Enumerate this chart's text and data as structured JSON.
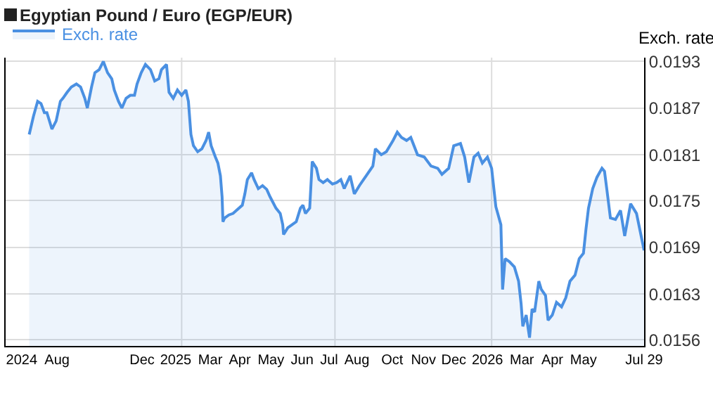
{
  "chart_data": {
    "type": "area",
    "title": "Egyptian Pound / Euro (EGP/EUR)",
    "ylabel": "Exch. rate",
    "legend": "top left",
    "grid": true,
    "marker": "none",
    "line_style": "solid",
    "x": [
      "2024-07-29",
      "2024-08-03",
      "2024-08-08",
      "2024-08-12",
      "2024-08-16",
      "2024-08-19",
      "2024-08-22",
      "2024-08-25",
      "2024-08-30",
      "2024-09-04",
      "2024-09-07",
      "2024-09-12",
      "2024-09-17",
      "2024-09-23",
      "2024-09-28",
      "2024-10-03",
      "2024-10-06",
      "2024-10-11",
      "2024-10-15",
      "2024-10-20",
      "2024-10-25",
      "2024-10-30",
      "2024-11-04",
      "2024-11-07",
      "2024-11-12",
      "2024-11-16",
      "2024-11-21",
      "2024-11-26",
      "2024-12-01",
      "2024-12-04",
      "2024-12-09",
      "2024-12-14",
      "2024-12-20",
      "2024-12-25",
      "2024-12-30",
      "2025-01-02",
      "2025-01-08",
      "2025-01-11",
      "2025-01-16",
      "2025-01-21",
      "2025-01-26",
      "2025-01-31",
      "2025-02-03",
      "2025-02-06",
      "2025-02-09",
      "2025-02-14",
      "2025-02-19",
      "2025-02-24",
      "2025-02-27",
      "2025-03-02",
      "2025-03-07",
      "2025-03-10",
      "2025-03-13",
      "2025-03-15",
      "2025-03-16",
      "2025-03-18",
      "2025-03-23",
      "2025-03-28",
      "2025-04-01",
      "2025-04-08",
      "2025-04-11",
      "2025-04-14",
      "2025-04-19",
      "2025-04-22",
      "2025-04-27",
      "2025-05-02",
      "2025-05-07",
      "2025-05-11",
      "2025-05-18",
      "2025-05-23",
      "2025-05-26",
      "2025-05-27",
      "2025-06-01",
      "2025-06-06",
      "2025-06-11",
      "2025-06-16",
      "2025-06-19",
      "2025-06-22",
      "2025-06-27",
      "2025-06-30",
      "2025-07-05",
      "2025-07-08",
      "2025-07-13",
      "2025-07-18",
      "2025-07-24",
      "2025-07-29",
      "2025-08-03",
      "2025-08-07",
      "2025-08-14",
      "2025-08-19",
      "2025-08-25",
      "2025-09-02",
      "2025-09-10",
      "2025-09-13",
      "2025-09-20",
      "2025-09-26",
      "2025-10-04",
      "2025-10-09",
      "2025-10-14",
      "2025-10-20",
      "2025-10-25",
      "2025-11-02",
      "2025-11-10",
      "2025-11-18",
      "2025-11-26",
      "2025-12-01",
      "2025-12-09",
      "2025-12-15",
      "2025-12-23",
      "2025-12-28",
      "2026-01-02",
      "2026-01-08",
      "2026-01-13",
      "2026-01-18",
      "2026-01-24",
      "2026-01-29",
      "2026-02-03",
      "2026-02-09",
      "2026-02-11",
      "2026-02-14",
      "2026-02-19",
      "2026-02-25",
      "2026-03-02",
      "2026-03-05",
      "2026-03-07",
      "2026-03-11",
      "2026-03-15",
      "2026-03-18",
      "2026-03-21",
      "2026-03-26",
      "2026-03-29",
      "2026-04-03",
      "2026-04-06",
      "2026-04-11",
      "2026-04-16",
      "2026-04-22",
      "2026-04-27",
      "2026-05-02",
      "2026-05-08",
      "2026-05-13",
      "2026-05-18",
      "2026-05-21",
      "2026-05-24",
      "2026-05-29",
      "2026-06-03",
      "2026-06-09",
      "2026-06-12",
      "2026-06-15",
      "2026-06-19",
      "2026-06-25",
      "2026-07-01",
      "2026-07-06",
      "2026-07-13",
      "2026-07-20",
      "2026-07-29"
    ],
    "series": [
      {
        "name": "Exch. rate",
        "color": "#4a90e2",
        "values": [
          0.01838,
          0.01862,
          0.01882,
          0.01879,
          0.01867,
          0.01867,
          0.01856,
          0.01845,
          0.01856,
          0.01882,
          0.01886,
          0.01894,
          0.01901,
          0.01905,
          0.01901,
          0.01886,
          0.01873,
          0.01901,
          0.0192,
          0.01924,
          0.01935,
          0.0192,
          0.01912,
          0.01897,
          0.01882,
          0.01873,
          0.01886,
          0.0189,
          0.0189,
          0.01905,
          0.0192,
          0.01931,
          0.01924,
          0.01909,
          0.01912,
          0.01924,
          0.01931,
          0.01894,
          0.01886,
          0.01897,
          0.0189,
          0.01897,
          0.01882,
          0.01838,
          0.01823,
          0.01815,
          0.01819,
          0.0183,
          0.01841,
          0.01823,
          0.01808,
          0.018,
          0.01783,
          0.01755,
          0.01722,
          0.01727,
          0.01731,
          0.01733,
          0.01737,
          0.01744,
          0.01759,
          0.01778,
          0.01787,
          0.01778,
          0.01766,
          0.0177,
          0.01765,
          0.01755,
          0.0174,
          0.01733,
          0.01718,
          0.01705,
          0.01714,
          0.01718,
          0.01722,
          0.0174,
          0.01744,
          0.01733,
          0.0174,
          0.01802,
          0.01793,
          0.01778,
          0.01774,
          0.01778,
          0.01772,
          0.01774,
          0.01778,
          0.01766,
          0.01783,
          0.01759,
          0.0177,
          0.01783,
          0.01796,
          0.01819,
          0.01811,
          0.01815,
          0.0183,
          0.01841,
          0.01834,
          0.0183,
          0.01834,
          0.01811,
          0.01808,
          0.01796,
          0.01793,
          0.01785,
          0.01793,
          0.01823,
          0.01826,
          0.01808,
          0.01774,
          0.01808,
          0.01813,
          0.018,
          0.01808,
          0.01793,
          0.01742,
          0.01718,
          0.01632,
          0.01673,
          0.01669,
          0.01662,
          0.01643,
          0.01613,
          0.01583,
          0.01598,
          0.01568,
          0.01606,
          0.01602,
          0.01643,
          0.01632,
          0.01624,
          0.01591,
          0.01598,
          0.01615,
          0.01609,
          0.01621,
          0.01643,
          0.01651,
          0.01673,
          0.0168,
          0.01712,
          0.0174,
          0.01766,
          0.01781,
          0.01793,
          0.01789,
          0.01763,
          0.01727,
          0.01725,
          0.01737,
          0.01703,
          0.01746,
          0.01733,
          0.01684
        ]
      }
    ],
    "xlim": [
      "2024-07-01",
      "2026-07-29"
    ],
    "xticks": [
      {
        "value": "2024-07-20",
        "label": "2024"
      },
      {
        "value": "2024-08-31",
        "label": "Aug"
      },
      {
        "value": "2024-12-10",
        "label": "Dec"
      },
      {
        "value": "2025-01-19",
        "label": "2025"
      },
      {
        "value": "2025-01-26",
        "label": null
      },
      {
        "value": "2025-03-01",
        "label": "Mar"
      },
      {
        "value": "2025-04-05",
        "label": "Apr"
      },
      {
        "value": "2025-05-12",
        "label": "May"
      },
      {
        "value": "2025-06-18",
        "label": "Jun"
      },
      {
        "value": "2025-07-20",
        "label": "Jul"
      },
      {
        "value": "2025-07-27",
        "label": null
      },
      {
        "value": "2025-08-22",
        "label": "Aug"
      },
      {
        "value": "2025-10-03",
        "label": "Oct"
      },
      {
        "value": "2025-11-09",
        "label": "Nov"
      },
      {
        "value": "2025-12-15",
        "label": "Dec"
      },
      {
        "value": "2026-01-24",
        "label": "2026"
      },
      {
        "value": "2026-01-29",
        "label": null
      },
      {
        "value": "2026-03-06",
        "label": "Mar"
      },
      {
        "value": "2026-04-11",
        "label": "Apr"
      },
      {
        "value": "2026-05-18",
        "label": "May"
      },
      {
        "value": "2026-07-29",
        "label": "Jul 29"
      }
    ],
    "ylim": [
      0.01557,
      0.0194
    ],
    "yticks": [
      {
        "value": 0.01565,
        "label": "0.0156"
      },
      {
        "value": 0.01626,
        "label": "0.0163"
      },
      {
        "value": 0.01688,
        "label": "0.0169"
      },
      {
        "value": 0.0175,
        "label": "0.0175"
      },
      {
        "value": 0.01811,
        "label": "0.0181"
      },
      {
        "value": 0.01873,
        "label": "0.0187"
      },
      {
        "value": 0.01935,
        "label": "0.0193"
      }
    ]
  }
}
